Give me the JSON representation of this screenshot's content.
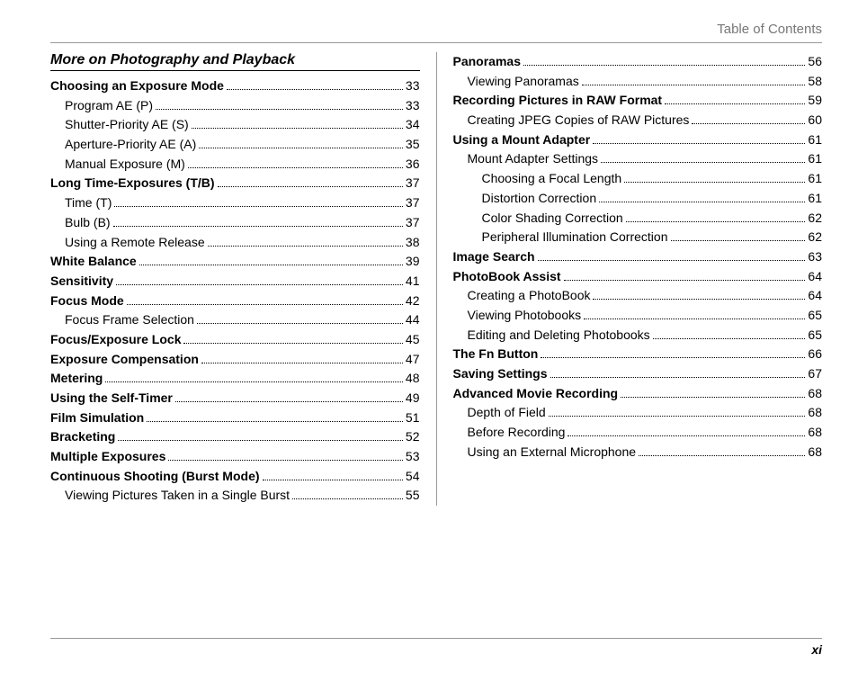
{
  "header": {
    "title": "Table of Contents"
  },
  "section": {
    "title": "More on Photography and Playback"
  },
  "footer": {
    "page_number": "xi"
  },
  "left_col": [
    {
      "label": "Choosing an Exposure Mode",
      "page": "33",
      "bold": true,
      "indent": 0
    },
    {
      "label": "Program AE (P)",
      "page": "33",
      "bold": false,
      "indent": 1
    },
    {
      "label": "Shutter-Priority AE (S)",
      "page": "34",
      "bold": false,
      "indent": 1
    },
    {
      "label": "Aperture-Priority AE (A)",
      "page": "35",
      "bold": false,
      "indent": 1
    },
    {
      "label": "Manual Exposure (M)",
      "page": "36",
      "bold": false,
      "indent": 1
    },
    {
      "label": "Long Time-Exposures (T/B)",
      "page": "37",
      "bold": true,
      "indent": 0
    },
    {
      "label": "Time (T)",
      "page": "37",
      "bold": false,
      "indent": 1
    },
    {
      "label": "Bulb (B)",
      "page": "37",
      "bold": false,
      "indent": 1
    },
    {
      "label": "Using a Remote Release",
      "page": "38",
      "bold": false,
      "indent": 1
    },
    {
      "label": "White Balance",
      "page": "39",
      "bold": true,
      "indent": 0
    },
    {
      "label": "Sensitivity",
      "page": "41",
      "bold": true,
      "indent": 0
    },
    {
      "label": "Focus Mode",
      "page": "42",
      "bold": true,
      "indent": 0
    },
    {
      "label": "Focus Frame Selection",
      "page": "44",
      "bold": false,
      "indent": 1
    },
    {
      "label": "Focus/Exposure Lock",
      "page": "45",
      "bold": true,
      "indent": 0
    },
    {
      "label": "Exposure Compensation",
      "page": "47",
      "bold": true,
      "indent": 0
    },
    {
      "label": "Metering",
      "page": "48",
      "bold": true,
      "indent": 0
    },
    {
      "label": "Using the Self-Timer",
      "page": "49",
      "bold": true,
      "indent": 0
    },
    {
      "label": "Film Simulation",
      "page": "51",
      "bold": true,
      "indent": 0
    },
    {
      "label": "Bracketing",
      "page": "52",
      "bold": true,
      "indent": 0
    },
    {
      "label": "Multiple Exposures",
      "page": "53",
      "bold": true,
      "indent": 0
    },
    {
      "label": "Continuous Shooting (Burst Mode)",
      "page": "54",
      "bold": true,
      "indent": 0
    },
    {
      "label": "Viewing Pictures Taken in a Single Burst",
      "page": "55",
      "bold": false,
      "indent": 1
    }
  ],
  "right_col": [
    {
      "label": "Panoramas",
      "page": "56",
      "bold": true,
      "indent": 0
    },
    {
      "label": "Viewing Panoramas",
      "page": "58",
      "bold": false,
      "indent": 1
    },
    {
      "label": "Recording Pictures in RAW Format",
      "page": "59",
      "bold": true,
      "indent": 0
    },
    {
      "label": "Creating JPEG Copies of RAW Pictures",
      "page": "60",
      "bold": false,
      "indent": 1
    },
    {
      "label": "Using a Mount Adapter",
      "page": "61",
      "bold": true,
      "indent": 0
    },
    {
      "label": "Mount Adapter Settings",
      "page": "61",
      "bold": false,
      "indent": 1
    },
    {
      "label": "Choosing a Focal Length",
      "page": "61",
      "bold": false,
      "indent": 2
    },
    {
      "label": "Distortion Correction",
      "page": "61",
      "bold": false,
      "indent": 2
    },
    {
      "label": "Color Shading Correction",
      "page": "62",
      "bold": false,
      "indent": 2
    },
    {
      "label": "Peripheral Illumination Correction",
      "page": "62",
      "bold": false,
      "indent": 2
    },
    {
      "label": "Image Search",
      "page": "63",
      "bold": true,
      "indent": 0
    },
    {
      "label": "PhotoBook Assist",
      "page": "64",
      "bold": true,
      "indent": 0
    },
    {
      "label": "Creating a PhotoBook",
      "page": "64",
      "bold": false,
      "indent": 1
    },
    {
      "label": "Viewing Photobooks",
      "page": "65",
      "bold": false,
      "indent": 1
    },
    {
      "label": "Editing and Deleting Photobooks",
      "page": "65",
      "bold": false,
      "indent": 1
    },
    {
      "label": "The Fn Button",
      "page": "66",
      "bold": true,
      "indent": 0
    },
    {
      "label": "Saving Settings",
      "page": "67",
      "bold": true,
      "indent": 0
    },
    {
      "label": "Advanced Movie Recording",
      "page": "68",
      "bold": true,
      "indent": 0
    },
    {
      "label": "Depth of Field",
      "page": "68",
      "bold": false,
      "indent": 1
    },
    {
      "label": "Before Recording",
      "page": "68",
      "bold": false,
      "indent": 1
    },
    {
      "label": "Using an External Microphone",
      "page": "68",
      "bold": false,
      "indent": 1
    }
  ]
}
